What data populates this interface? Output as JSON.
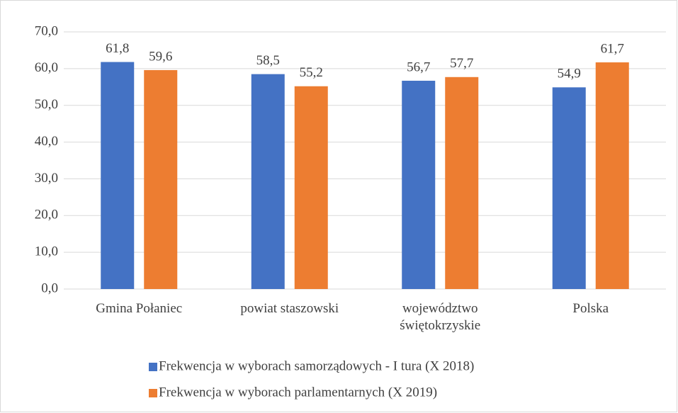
{
  "chart_data": {
    "type": "bar",
    "categories": [
      "Gmina Połaniec",
      "powiat staszowski",
      "województwo świętokrzyskie",
      "Polska"
    ],
    "series": [
      {
        "name": "Frekwencja w wyborach samorządowych - I tura (X 2018)",
        "color": "#4472c4",
        "values": [
          61.8,
          58.5,
          56.7,
          54.9
        ],
        "value_labels": [
          "61,8",
          "58,5",
          "56,7",
          "54,9"
        ]
      },
      {
        "name": "Frekwencja w wyborach parlamentarnych (X 2019)",
        "color": "#ed7d31",
        "values": [
          59.6,
          55.2,
          57.7,
          61.7
        ],
        "value_labels": [
          "59,6",
          "55,2",
          "57,7",
          "61,7"
        ]
      }
    ],
    "ylim": [
      0,
      70
    ],
    "yticks": [
      {
        "value": 0,
        "label": "0,0"
      },
      {
        "value": 10,
        "label": "10,0"
      },
      {
        "value": 20,
        "label": "20,0"
      },
      {
        "value": 30,
        "label": "30,0"
      },
      {
        "value": 40,
        "label": "40,0"
      },
      {
        "value": 50,
        "label": "50,0"
      },
      {
        "value": 60,
        "label": "60,0"
      },
      {
        "value": 70,
        "label": "70,0"
      }
    ],
    "grid": true,
    "legend": "bottom"
  }
}
